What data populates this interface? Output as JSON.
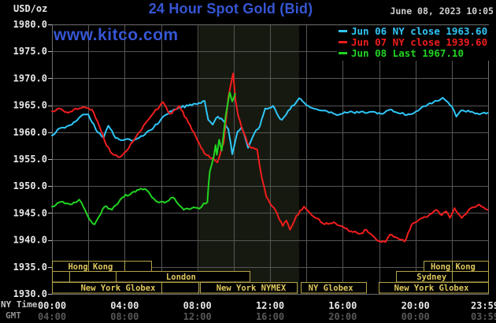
{
  "header": {
    "unit_label": "USD/oz",
    "title": "24 Hour Spot Gold (Bid)",
    "timestamp": "June 08, 2023 10:05",
    "watermark": "www.kitco.com"
  },
  "colors": {
    "title_blue": "#3656d4",
    "grid": "#565656",
    "border": "#6e6e6e",
    "band": "#16190f",
    "session_box": "#b3a449",
    "session_text": "#dfc85c",
    "axis_text": "#e8e8e8",
    "axis_row_label": "#c8c8c8",
    "gmt_text": "#585858",
    "gmt_row_label": "#8c8c8c",
    "tick": "#c0c0c0",
    "cyan": "#2fc6f7",
    "red": "#f01d1d",
    "green": "#21d421"
  },
  "chart_data": {
    "type": "line",
    "title": "24 Hour Spot Gold (Bid)",
    "ylabel": "USD/oz",
    "ylim": [
      1930,
      1980
    ],
    "y_tick_step": 5,
    "grid_hours_step": 2,
    "highlight_band_hours": [
      8.09,
      13.6
    ],
    "x_axis": {
      "ny_row_label": "NY Time",
      "gmt_row_label": "GMT",
      "ticks": [
        {
          "h": 0,
          "ny": "00:00",
          "gmt": "04:00"
        },
        {
          "h": 4,
          "ny": "04:00",
          "gmt": "08:00"
        },
        {
          "h": 8,
          "ny": "08:00",
          "gmt": "12:00"
        },
        {
          "h": 12,
          "ny": "12:00",
          "gmt": "16:00"
        },
        {
          "h": 16,
          "ny": "16:00",
          "gmt": "20:00"
        },
        {
          "h": 20,
          "ny": "20:00",
          "gmt": "00:00"
        },
        {
          "h": 23.983,
          "ny": "23:59",
          "gmt": "03:59"
        }
      ]
    },
    "series": [
      {
        "name": "Jun 06",
        "legend": "Jun 06 NY close 1963.60",
        "close": 1963.6,
        "color_key": "cyan",
        "points": [
          [
            0,
            1959.4
          ],
          [
            0.5,
            1960.8
          ],
          [
            1,
            1961.3
          ],
          [
            1.6,
            1963
          ],
          [
            2,
            1963.3
          ],
          [
            2.5,
            1960
          ],
          [
            2.85,
            1959
          ],
          [
            3.1,
            1961.2
          ],
          [
            3.5,
            1958.9
          ],
          [
            4,
            1958.6
          ],
          [
            4.5,
            1958.5
          ],
          [
            5,
            1959.3
          ],
          [
            5.5,
            1960.5
          ],
          [
            6,
            1962.4
          ],
          [
            6.5,
            1963.9
          ],
          [
            7,
            1964.6
          ],
          [
            7.5,
            1964.9
          ],
          [
            8,
            1965.2
          ],
          [
            8.4,
            1965.8
          ],
          [
            8.6,
            1962.3
          ],
          [
            8.84,
            1961.4
          ],
          [
            9.13,
            1962.9
          ],
          [
            9.41,
            1962.2
          ],
          [
            9.7,
            1960.6
          ],
          [
            9.85,
            1957.6
          ],
          [
            9.92,
            1955.9
          ],
          [
            10.21,
            1960.1
          ],
          [
            10.43,
            1960.9
          ],
          [
            10.64,
            1958.9
          ],
          [
            10.79,
            1957.1
          ],
          [
            11.15,
            1959.9
          ],
          [
            11.44,
            1961.1
          ],
          [
            11.73,
            1964.4
          ],
          [
            12.16,
            1964.9
          ],
          [
            12.45,
            1963
          ],
          [
            12.65,
            1962.3
          ],
          [
            13,
            1964
          ],
          [
            13.6,
            1966.3
          ],
          [
            14.2,
            1964.6
          ],
          [
            14.9,
            1964
          ],
          [
            15.6,
            1963.3
          ],
          [
            16.2,
            1963.6
          ],
          [
            17,
            1963.8
          ],
          [
            17.8,
            1963.7
          ],
          [
            18.2,
            1963.4
          ],
          [
            18.6,
            1964.2
          ],
          [
            19.1,
            1963.5
          ],
          [
            19.7,
            1963.3
          ],
          [
            20.25,
            1964.3
          ],
          [
            20.7,
            1965.2
          ],
          [
            21,
            1965.6
          ],
          [
            21.5,
            1966.4
          ],
          [
            22,
            1964.8
          ],
          [
            22.25,
            1962.9
          ],
          [
            22.5,
            1964
          ],
          [
            23.1,
            1963.8
          ],
          [
            23.6,
            1963.4
          ],
          [
            23.98,
            1963.6
          ]
        ]
      },
      {
        "name": "Jun 07",
        "legend": "Jun 07 NY close 1939.60",
        "close": 1939.6,
        "color_key": "red",
        "points": [
          [
            0,
            1963.9
          ],
          [
            0.5,
            1964.3
          ],
          [
            0.9,
            1963.6
          ],
          [
            1.3,
            1964.4
          ],
          [
            1.9,
            1964.5
          ],
          [
            2.2,
            1964.2
          ],
          [
            2.6,
            1961.2
          ],
          [
            3,
            1957.5
          ],
          [
            3.35,
            1955.9
          ],
          [
            3.75,
            1955.4
          ],
          [
            4.1,
            1956.5
          ],
          [
            4.8,
            1960
          ],
          [
            5.5,
            1963.2
          ],
          [
            6.1,
            1965.6
          ],
          [
            6.5,
            1963.4
          ],
          [
            7,
            1964.9
          ],
          [
            7.5,
            1961.8
          ],
          [
            8,
            1958.5
          ],
          [
            8.4,
            1956
          ],
          [
            8.9,
            1955.1
          ],
          [
            9.1,
            1954.4
          ],
          [
            9.45,
            1958
          ],
          [
            9.7,
            1966.4
          ],
          [
            9.97,
            1970.9
          ],
          [
            10.1,
            1966
          ],
          [
            10.25,
            1963
          ],
          [
            10.45,
            1960.7
          ],
          [
            10.86,
            1957.4
          ],
          [
            11.29,
            1956.8
          ],
          [
            11.55,
            1951.5
          ],
          [
            11.8,
            1948
          ],
          [
            12.1,
            1946.3
          ],
          [
            12.3,
            1945.5
          ],
          [
            12.7,
            1942.6
          ],
          [
            12.9,
            1943.6
          ],
          [
            13.1,
            1941.9
          ],
          [
            13.45,
            1944.5
          ],
          [
            13.87,
            1946.2
          ],
          [
            14.5,
            1944.1
          ],
          [
            15,
            1942.9
          ],
          [
            15.5,
            1943.3
          ],
          [
            16,
            1942.5
          ],
          [
            16.35,
            1941.6
          ],
          [
            17,
            1941.2
          ],
          [
            17.3,
            1941.9
          ],
          [
            17.95,
            1939.8
          ],
          [
            18.35,
            1939.6
          ],
          [
            18.6,
            1941
          ],
          [
            19,
            1940.4
          ],
          [
            19.4,
            1939.7
          ],
          [
            19.8,
            1942.9
          ],
          [
            20.4,
            1944.1
          ],
          [
            20.9,
            1944.9
          ],
          [
            21.15,
            1945.6
          ],
          [
            21.45,
            1944.6
          ],
          [
            21.7,
            1945.3
          ],
          [
            21.9,
            1944.1
          ],
          [
            22.15,
            1945.9
          ],
          [
            22.55,
            1944.1
          ],
          [
            23.1,
            1946
          ],
          [
            23.5,
            1946.6
          ],
          [
            23.98,
            1945.6
          ]
        ]
      },
      {
        "name": "Jun 08",
        "legend": "Jun 08 Last 1967.10",
        "last": 1967.1,
        "color_key": "green",
        "points": [
          [
            0,
            1946.2
          ],
          [
            0.6,
            1947.1
          ],
          [
            1,
            1946.6
          ],
          [
            1.5,
            1947.5
          ],
          [
            2.05,
            1943.9
          ],
          [
            2.35,
            1942.9
          ],
          [
            2.9,
            1946.2
          ],
          [
            3.3,
            1945.6
          ],
          [
            3.95,
            1948
          ],
          [
            4.7,
            1949.3
          ],
          [
            5.1,
            1949.5
          ],
          [
            5.7,
            1947.3
          ],
          [
            6.2,
            1946.9
          ],
          [
            6.65,
            1947.9
          ],
          [
            7.25,
            1945.6
          ],
          [
            7.7,
            1945.9
          ],
          [
            8.1,
            1945.8
          ],
          [
            8.35,
            1946.8
          ],
          [
            8.55,
            1947
          ],
          [
            8.62,
            1950.5
          ],
          [
            8.69,
            1952.8
          ],
          [
            8.91,
            1955.6
          ],
          [
            9,
            1957.6
          ],
          [
            9.07,
            1955.8
          ],
          [
            9.2,
            1958.6
          ],
          [
            9.34,
            1956.6
          ],
          [
            9.56,
            1963.1
          ],
          [
            9.78,
            1967.4
          ],
          [
            9.92,
            1965.7
          ],
          [
            10.08,
            1967.1
          ]
        ]
      }
    ],
    "sessions": [
      {
        "row": 1,
        "from_h": 0,
        "to_h": 5.48,
        "label": "Hong Kong",
        "label_h": 2.12,
        "dividers": [
          2,
          4
        ]
      },
      {
        "row": 1,
        "from_h": 20.46,
        "to_h": 24,
        "label": "Hong Kong",
        "label_h": 22.07,
        "dividers": [
          22
        ]
      },
      {
        "row": 2,
        "from_h": 0,
        "to_h": 10.87,
        "label": "London",
        "label_h": 7.1,
        "dividers": [
          0.97,
          3.5
        ]
      },
      {
        "row": 2,
        "from_h": 18.92,
        "to_h": 24,
        "label": "Sydney",
        "label_h": 20.89,
        "dividers": [
          22
        ]
      },
      {
        "row": 3,
        "from_h": 0,
        "to_h": 8.04,
        "label": "New York Globex",
        "label_h": 3.64,
        "dividers": [
          6
        ]
      },
      {
        "row": 3,
        "from_h": 8.14,
        "to_h": 13.47,
        "label": "New York NYMEX",
        "label_h": 10.96,
        "dividers": []
      },
      {
        "row": 3,
        "from_h": 13.68,
        "to_h": 17.28,
        "label": "NY Globex",
        "label_h": 15.34,
        "dividers": []
      },
      {
        "row": 3,
        "from_h": 17.96,
        "to_h": 24,
        "label": "New York Globex",
        "label_h": 20.88,
        "dividers": []
      }
    ]
  }
}
